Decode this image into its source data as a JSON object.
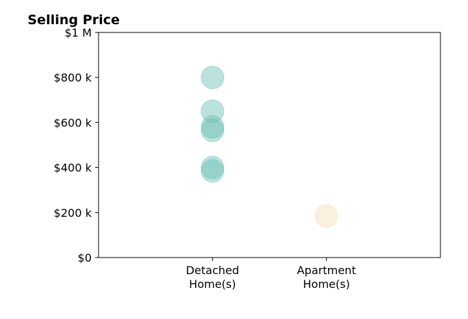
{
  "chart_data": {
    "type": "scatter",
    "title": "Selling Price",
    "categories": [
      "Detached Home(s)",
      "Apartment Home(s)"
    ],
    "category_lines": [
      [
        "Detached",
        "Home(s)"
      ],
      [
        "Apartment",
        "Home(s)"
      ]
    ],
    "yticks": [
      0,
      200000,
      400000,
      600000,
      800000,
      1000000
    ],
    "ytick_labels": [
      "$0",
      "$200 k",
      "$400 k",
      "$600 k",
      "$800 k",
      "$1 M"
    ],
    "ylim": [
      0,
      1000000
    ],
    "xlim": [
      -1,
      2
    ],
    "grid": false,
    "series": [
      {
        "category": "Detached Home(s)",
        "color": "#6abfb4",
        "values": [
          800000,
          650000,
          580000,
          565000,
          400000,
          385000
        ]
      },
      {
        "category": "Apartment Home(s)",
        "color": "#f5deb3",
        "values": [
          185000
        ]
      }
    ],
    "marker_opacity": 0.45
  }
}
